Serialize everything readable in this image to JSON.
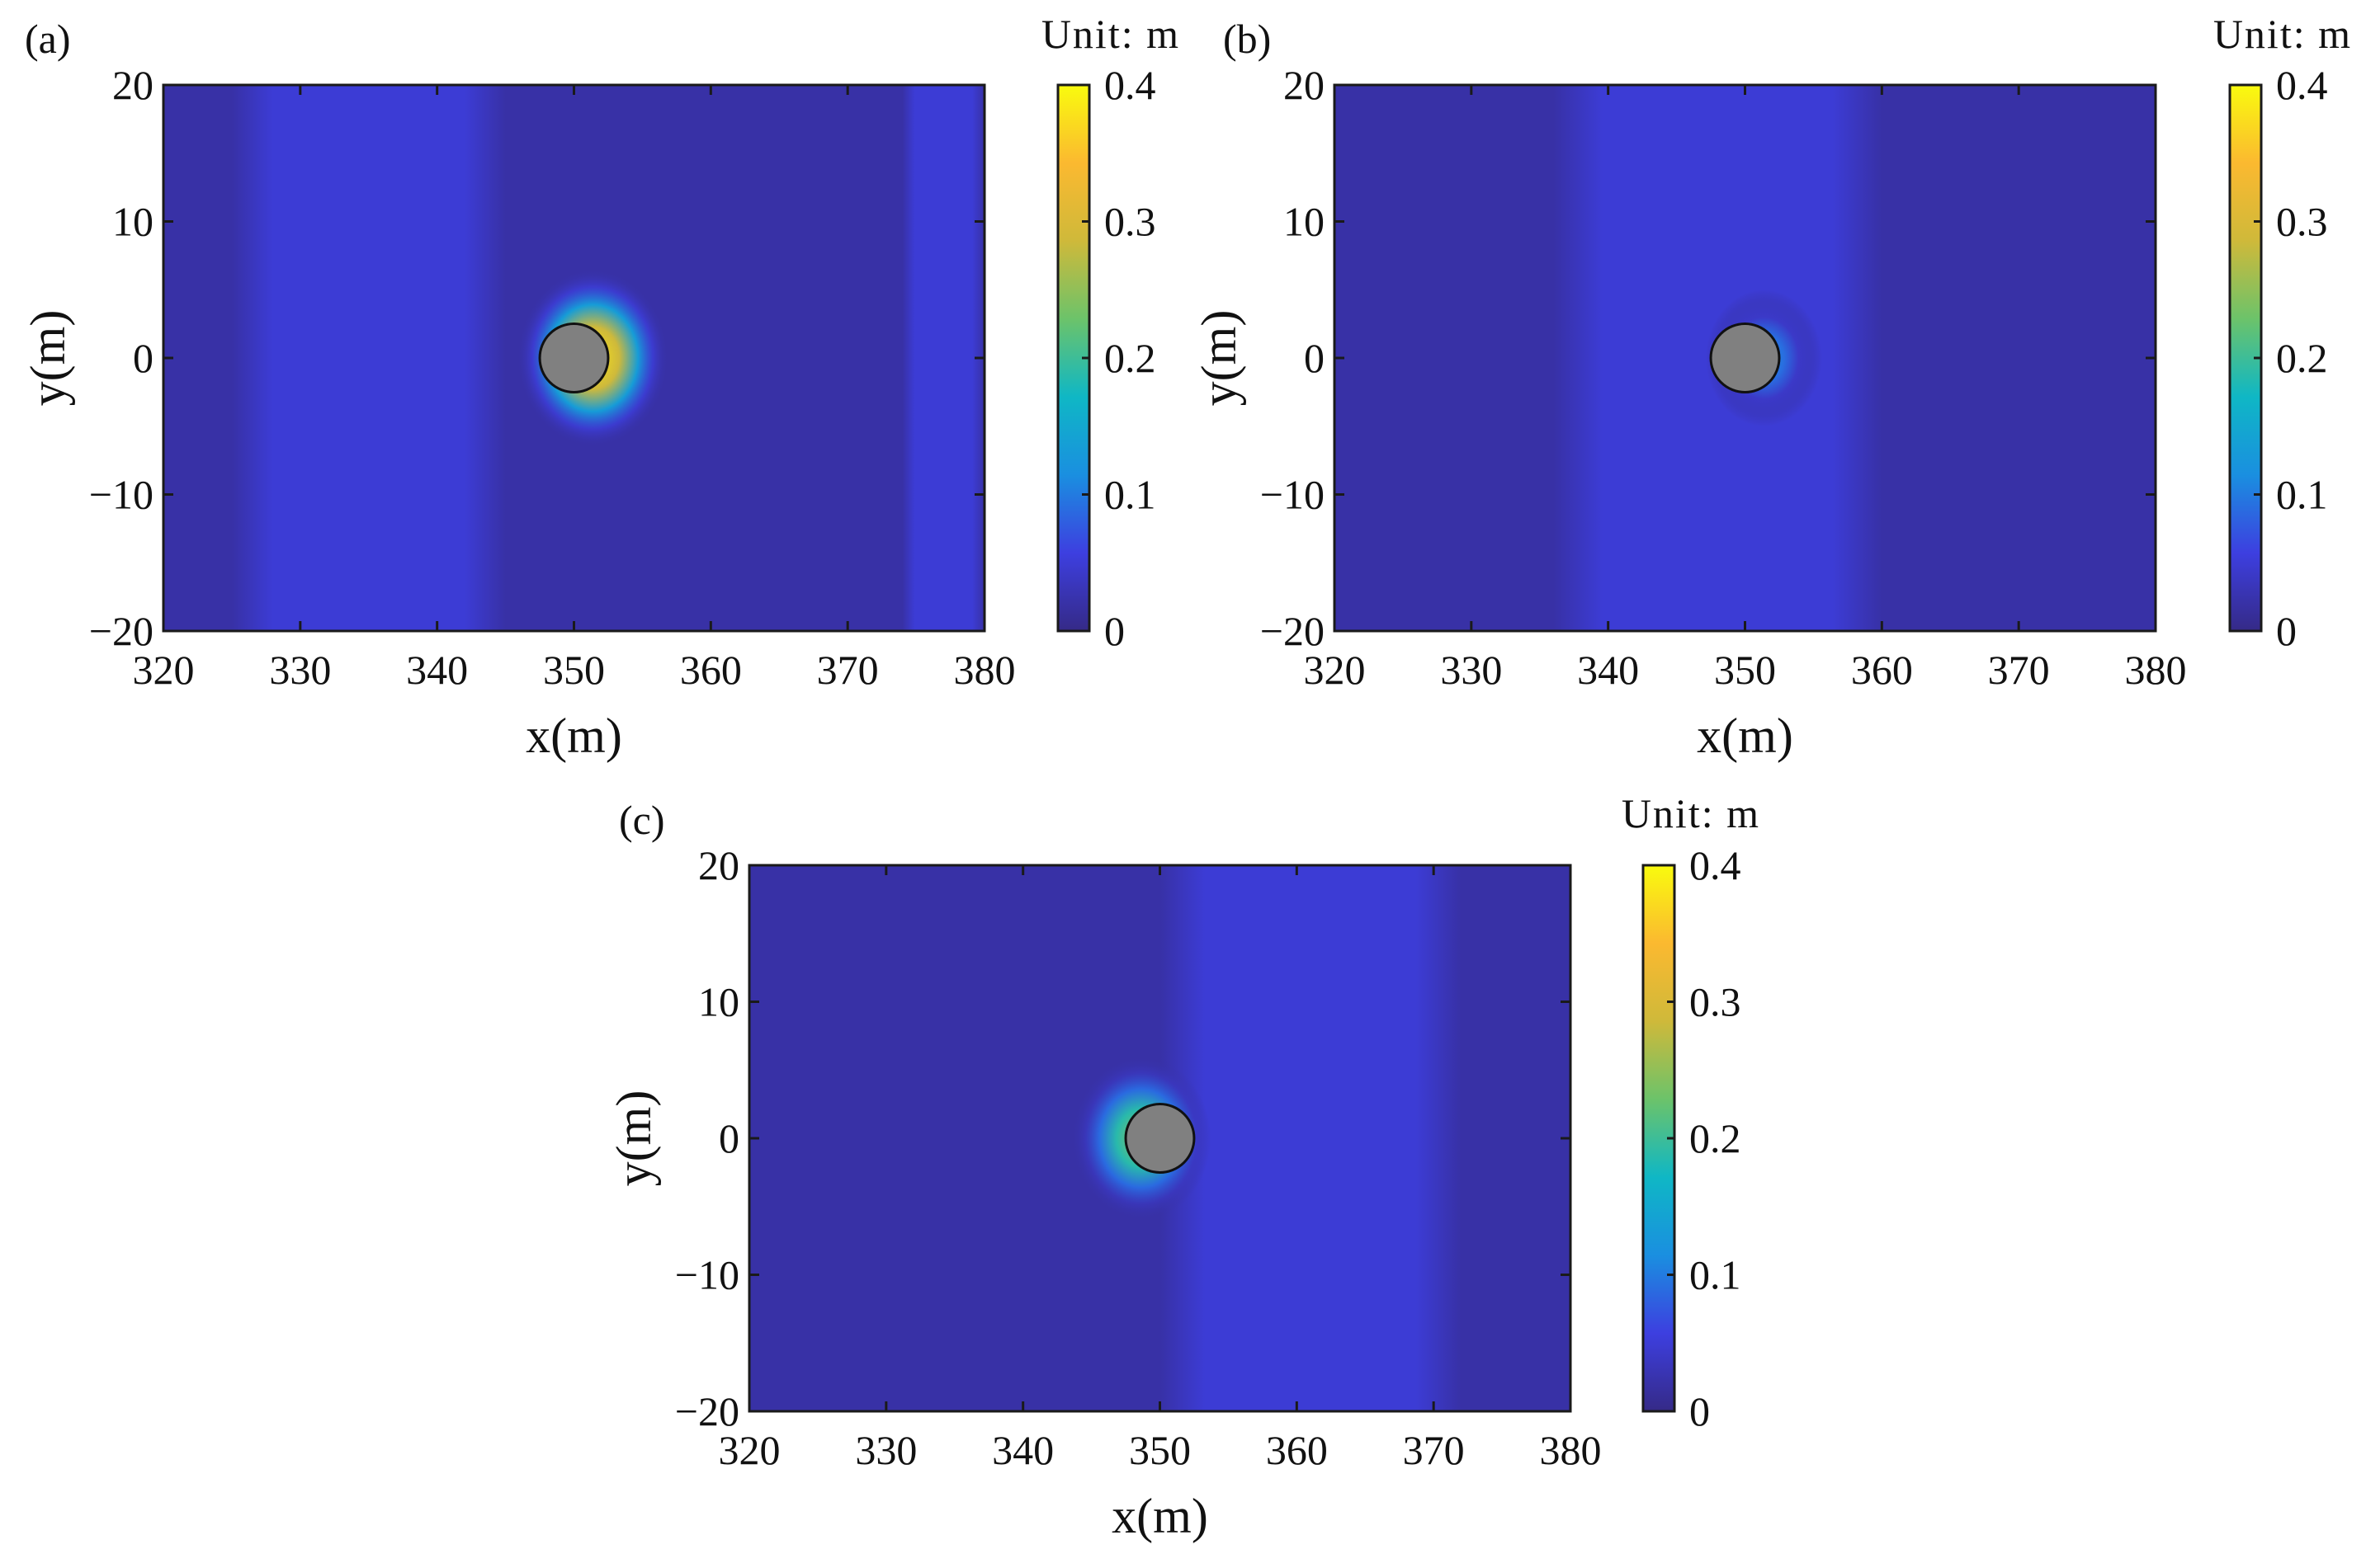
{
  "colors": {
    "field_base": "#3c2fb0",
    "field_band": "#4a48e0",
    "cylinder_fill": "#808080",
    "cylinder_stroke": "#111111",
    "colormap": [
      "#352a87",
      "#3d3fe0",
      "#1a8fe0",
      "#0fb7c5",
      "#6cc36a",
      "#cfb93a",
      "#fbb930",
      "#f9fb0e"
    ]
  },
  "chart_data": [
    {
      "type": "heatmap",
      "panel_label": "(a)",
      "xlabel": "x(m)",
      "ylabel": "y(m)",
      "xlim": [
        320,
        380
      ],
      "ylim": [
        -20,
        20
      ],
      "xticks": [
        320,
        330,
        340,
        350,
        360,
        370,
        380
      ],
      "yticks": [
        -20,
        -10,
        0,
        10,
        20
      ],
      "colorbar": {
        "title": "Unit:  m",
        "min": 0,
        "max": 0.4,
        "ticks": [
          0,
          0.1,
          0.2,
          0.3,
          0.4
        ]
      },
      "cylinder": {
        "x": 350,
        "y": 0,
        "radius": 2.5
      },
      "background_level": 0.02,
      "bands": [
        {
          "x_from": 325,
          "x_to": 345,
          "level": 0.05
        },
        {
          "x_from": 374,
          "x_to": 380,
          "level": 0.05
        }
      ],
      "hotspot": {
        "side": "right",
        "peak": 0.38,
        "spread": 4
      }
    },
    {
      "type": "heatmap",
      "panel_label": "(b)",
      "xlabel": "x(m)",
      "ylabel": "y(m)",
      "xlim": [
        320,
        380
      ],
      "ylim": [
        -20,
        20
      ],
      "xticks": [
        320,
        330,
        340,
        350,
        360,
        370,
        380
      ],
      "yticks": [
        -20,
        -10,
        0,
        10,
        20
      ],
      "colorbar": {
        "title": "Unit:  m",
        "min": 0,
        "max": 0.4,
        "ticks": [
          0,
          0.1,
          0.2,
          0.3,
          0.4
        ]
      },
      "cylinder": {
        "x": 350,
        "y": 0,
        "radius": 2.5
      },
      "background_level": 0.02,
      "bands": [
        {
          "x_from": 336,
          "x_to": 360,
          "level": 0.05
        }
      ],
      "hotspot": {
        "side": "right",
        "peak": 0.12,
        "spread": 2.5
      }
    },
    {
      "type": "heatmap",
      "panel_label": "(c)",
      "xlabel": "x(m)",
      "ylabel": "y(m)",
      "xlim": [
        320,
        380
      ],
      "ylim": [
        -20,
        20
      ],
      "xticks": [
        320,
        330,
        340,
        350,
        360,
        370,
        380
      ],
      "yticks": [
        -20,
        -10,
        0,
        10,
        20
      ],
      "colorbar": {
        "title": "Unit:  m",
        "min": 0,
        "max": 0.4,
        "ticks": [
          0,
          0.1,
          0.2,
          0.3,
          0.4
        ]
      },
      "cylinder": {
        "x": 350,
        "y": 0,
        "radius": 2.5
      },
      "background_level": 0.02,
      "bands": [
        {
          "x_from": 350,
          "x_to": 372,
          "level": 0.05
        }
      ],
      "hotspot": {
        "side": "left",
        "peak": 0.25,
        "spread": 3.5
      }
    }
  ]
}
